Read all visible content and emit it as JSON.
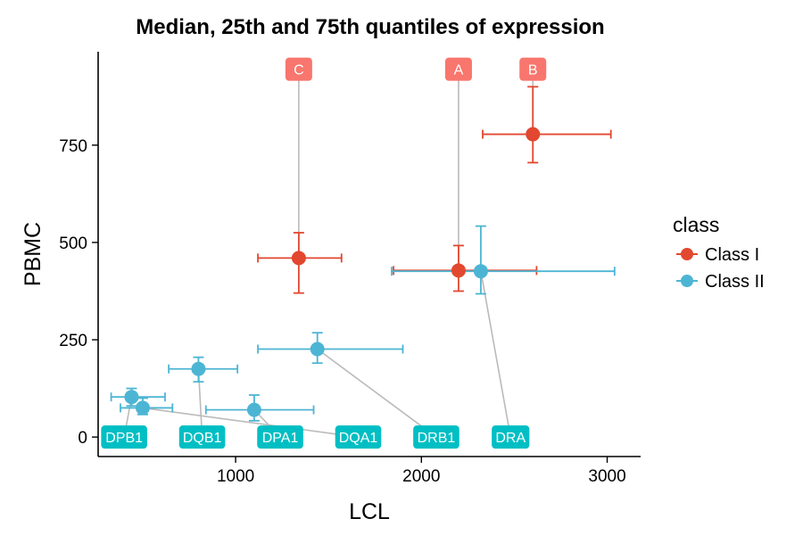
{
  "chart_data": {
    "type": "scatter",
    "title": "Median, 25th and 75th quantiles of expression",
    "xlabel": "LCL",
    "ylabel": "PBMC",
    "xlim": [
      260,
      3180
    ],
    "ylim": [
      -50,
      990
    ],
    "x_ticks": [
      1000,
      2000,
      3000
    ],
    "x_tick_labels": [
      "1000",
      "2000",
      "3000"
    ],
    "y_ticks": [
      0,
      250,
      500,
      750
    ],
    "y_tick_labels": [
      "0",
      "250",
      "500",
      "750"
    ],
    "grid": false,
    "legend": {
      "title": "class",
      "position": "right",
      "entries": [
        {
          "label": "Class I",
          "color": "#E2472F"
        },
        {
          "label": "Class II",
          "color": "#4DB5D4"
        }
      ]
    },
    "label_colors": {
      "Class I": "#F8766D",
      "Class II": "#00BFC4"
    },
    "connector_color": "#BBBBBB",
    "series": [
      {
        "name": "Class I",
        "color": "#E2472F",
        "points": [
          {
            "gene": "C",
            "x": 1340,
            "y": 460,
            "x_q25": 1120,
            "x_q75": 1570,
            "y_q25": 370,
            "y_q75": 525,
            "label_x": 1340,
            "label_y": 945
          },
          {
            "gene": "A",
            "x": 2200,
            "y": 428,
            "x_q25": 1850,
            "x_q75": 2620,
            "y_q25": 375,
            "y_q75": 492,
            "label_x": 2200,
            "label_y": 945
          },
          {
            "gene": "B",
            "x": 2600,
            "y": 778,
            "x_q25": 2330,
            "x_q75": 3020,
            "y_q25": 705,
            "y_q75": 900,
            "label_x": 2600,
            "label_y": 945
          }
        ]
      },
      {
        "name": "Class II",
        "color": "#4DB5D4",
        "points": [
          {
            "gene": "DPB1",
            "x": 440,
            "y": 103,
            "x_q25": 330,
            "x_q75": 620,
            "y_q25": 80,
            "y_q75": 125,
            "label_x": 400,
            "label_y": 0
          },
          {
            "gene": "DQB1",
            "x": 800,
            "y": 175,
            "x_q25": 640,
            "x_q75": 1010,
            "y_q25": 142,
            "y_q75": 205,
            "label_x": 820,
            "label_y": 0
          },
          {
            "gene": "DPA1",
            "x": 1100,
            "y": 70,
            "x_q25": 840,
            "x_q75": 1420,
            "y_q25": 42,
            "y_q75": 108,
            "label_x": 1240,
            "label_y": 0
          },
          {
            "gene": "DQA1",
            "x": 500,
            "y": 75,
            "x_q25": 380,
            "x_q75": 660,
            "y_q25": 58,
            "y_q75": 100,
            "label_x": 1660,
            "label_y": 0
          },
          {
            "gene": "DRB1",
            "x": 1440,
            "y": 226,
            "x_q25": 1120,
            "x_q75": 1900,
            "y_q25": 190,
            "y_q75": 268,
            "label_x": 2080,
            "label_y": 0
          },
          {
            "gene": "DRA",
            "x": 2320,
            "y": 426,
            "x_q25": 1840,
            "x_q75": 3040,
            "y_q25": 368,
            "y_q75": 542,
            "label_x": 2480,
            "label_y": 0
          }
        ]
      }
    ]
  }
}
